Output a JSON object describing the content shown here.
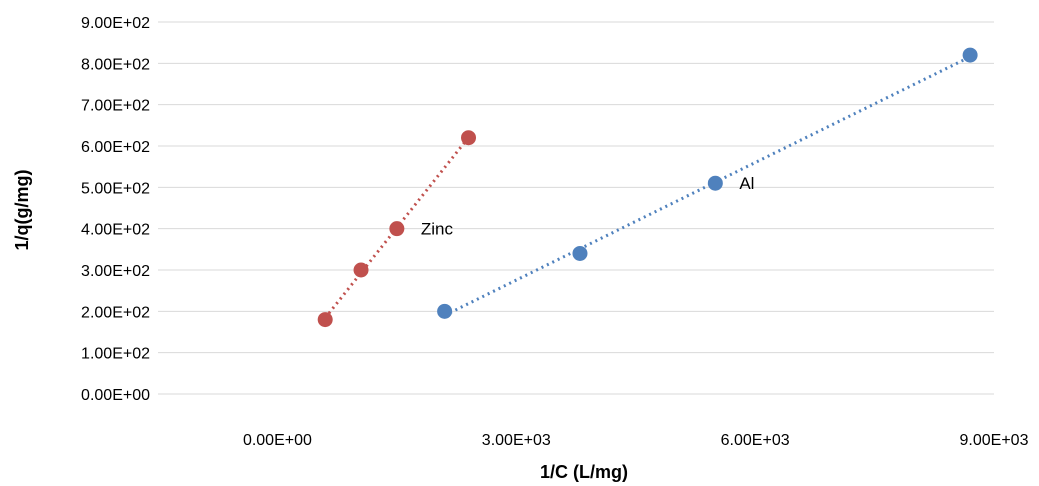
{
  "chart_data": {
    "type": "scatter",
    "title": "",
    "xlabel": "1/C (L/mg)",
    "ylabel": "1/q(g/mg)",
    "xlim": [
      -1500,
      9000
    ],
    "ylim": [
      0,
      900
    ],
    "x_ticks": [
      0,
      3000,
      6000,
      9000
    ],
    "x_tick_labels": [
      "0.00E+00",
      "3.00E+03",
      "6.00E+03",
      "9.00E+03"
    ],
    "y_ticks": [
      0,
      100,
      200,
      300,
      400,
      500,
      600,
      700,
      800,
      900
    ],
    "y_tick_labels": [
      "0.00E+00",
      "1.00E+02",
      "2.00E+02",
      "3.00E+02",
      "4.00E+02",
      "5.00E+02",
      "6.00E+02",
      "7.00E+02",
      "8.00E+02",
      "9.00E+02"
    ],
    "grid": "horizontal",
    "legend": "none",
    "series": [
      {
        "name": "Zinc",
        "color": "#c0504d",
        "trendline": "linear-dotted",
        "points": [
          {
            "x": 600,
            "y": 180
          },
          {
            "x": 1050,
            "y": 300
          },
          {
            "x": 1500,
            "y": 400
          },
          {
            "x": 2400,
            "y": 620
          }
        ]
      },
      {
        "name": "Al",
        "color": "#4f81bd",
        "trendline": "linear-dotted",
        "points": [
          {
            "x": 2100,
            "y": 200
          },
          {
            "x": 3800,
            "y": 340
          },
          {
            "x": 5500,
            "y": 510
          },
          {
            "x": 8700,
            "y": 820
          }
        ]
      }
    ]
  }
}
